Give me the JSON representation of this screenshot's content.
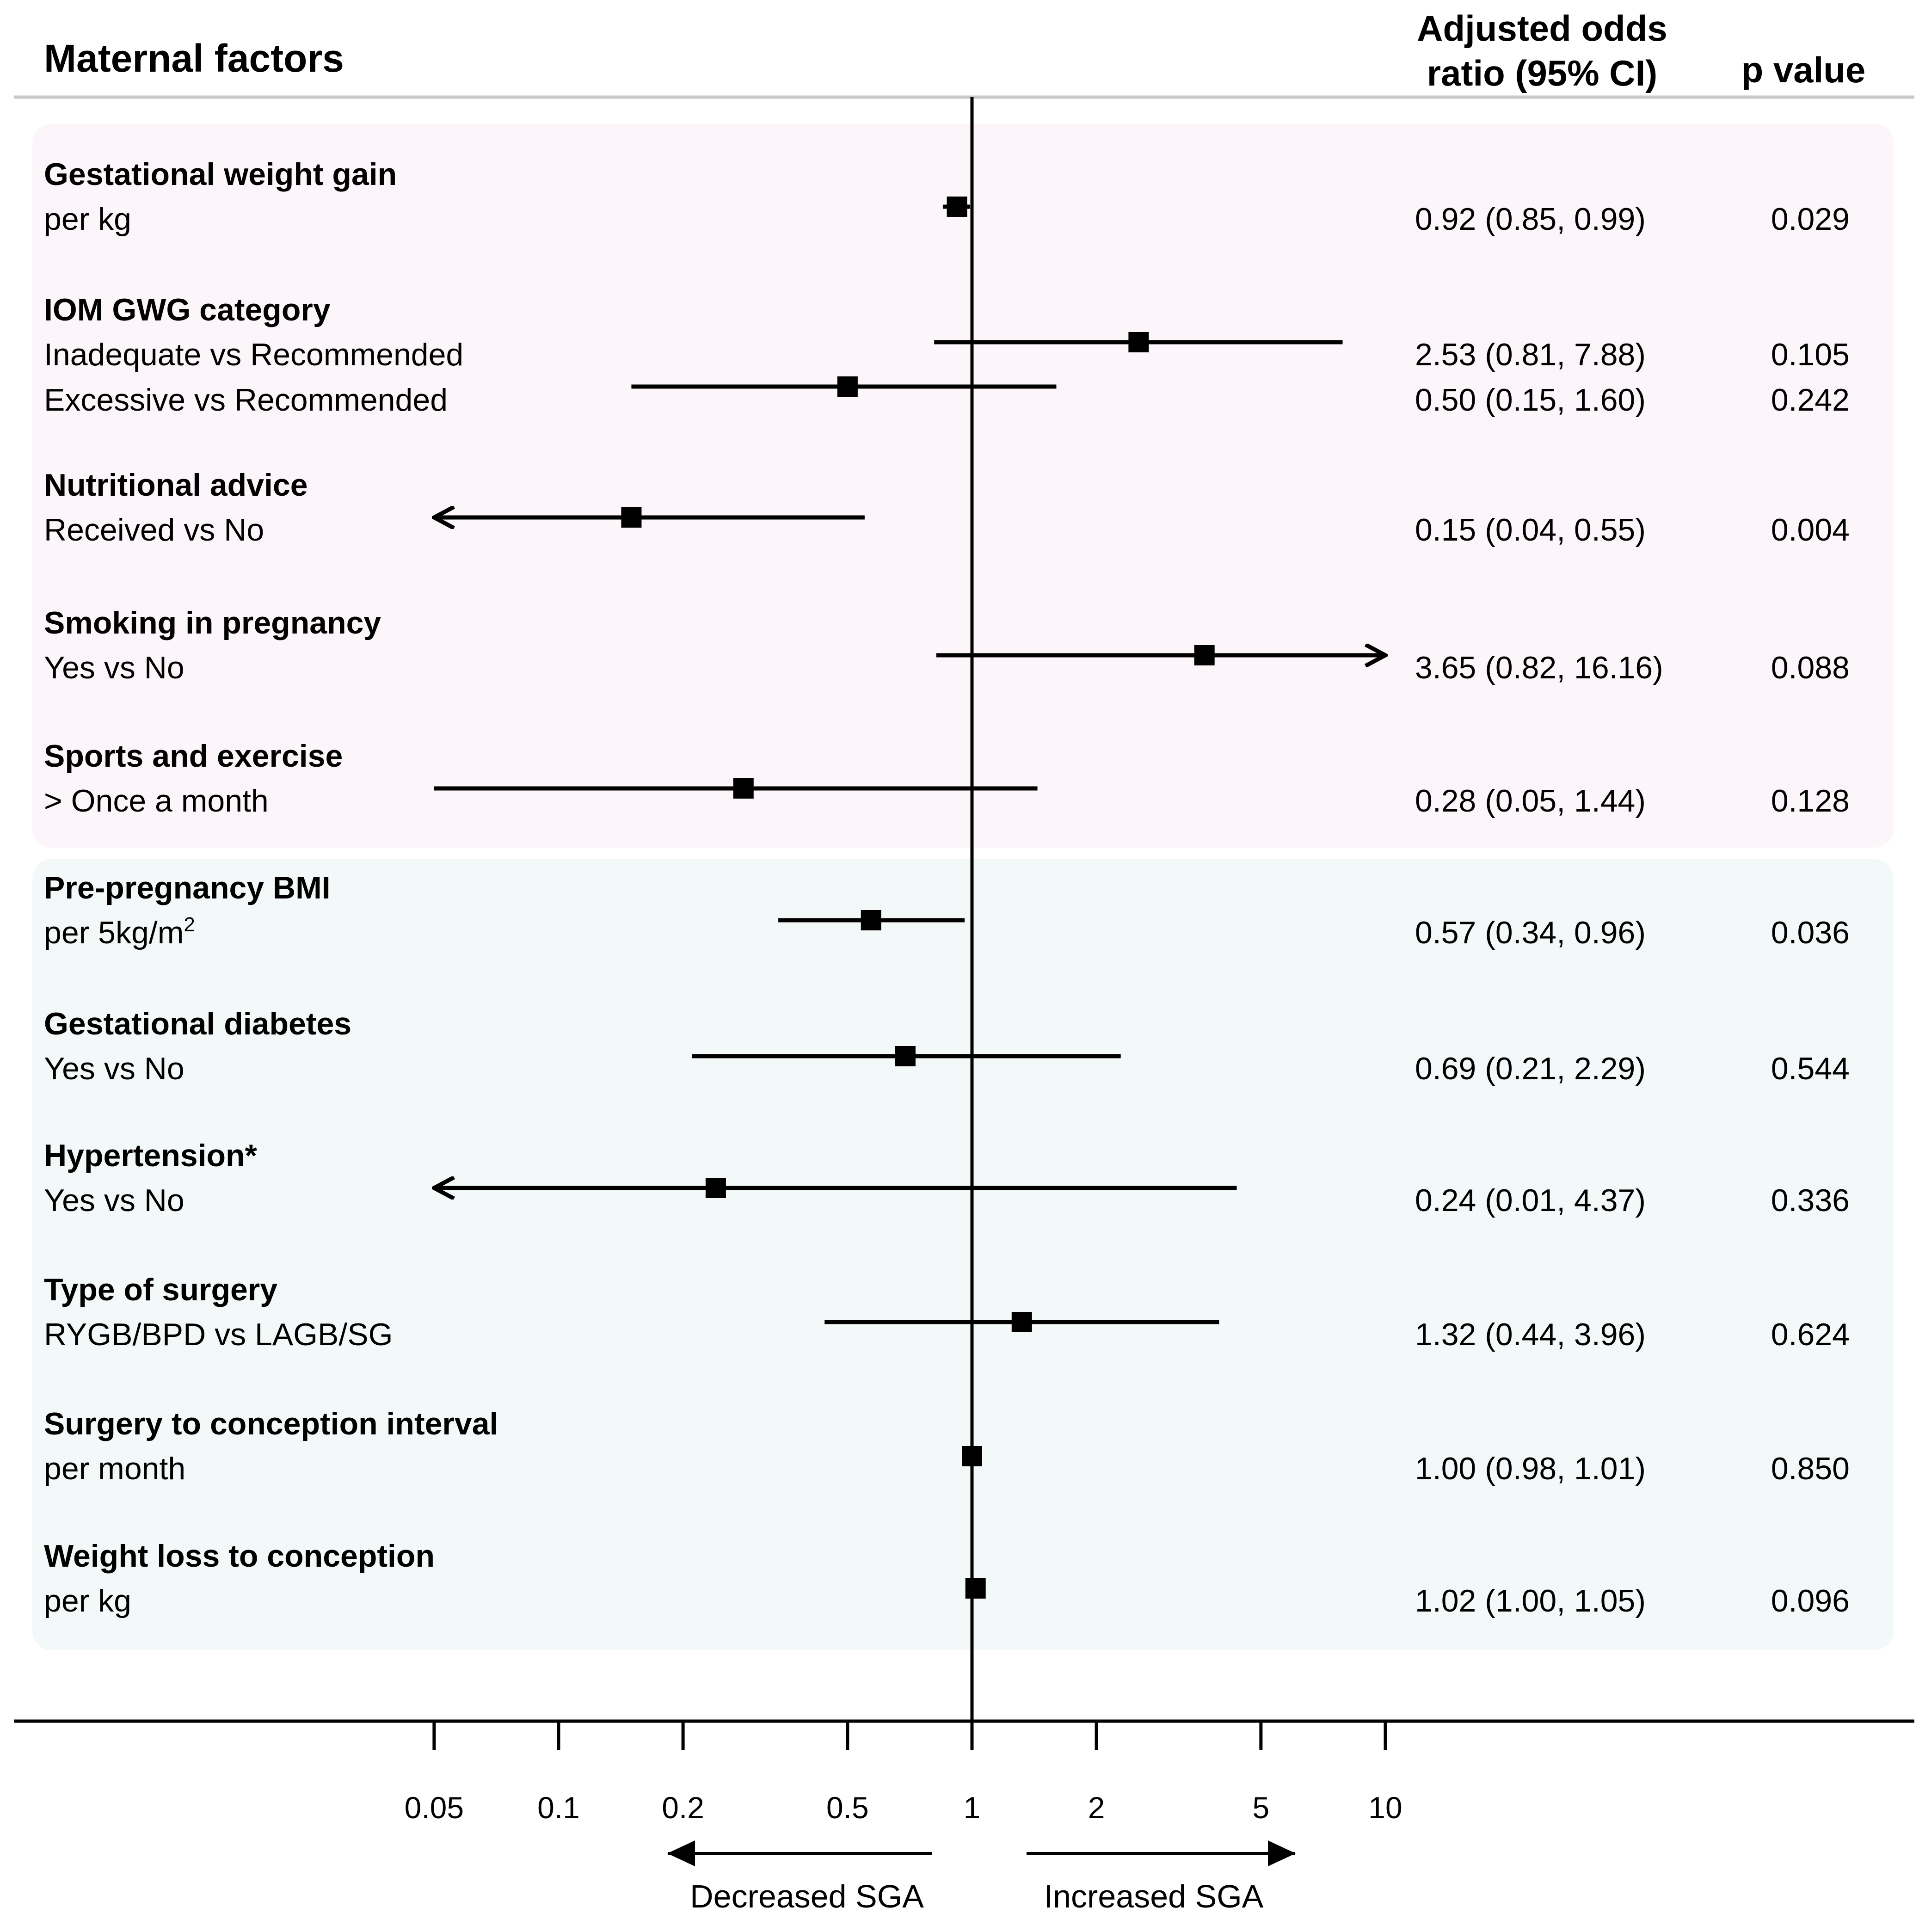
{
  "chart_data": {
    "type": "forest",
    "title": "Maternal factors",
    "columns": {
      "or_header_line1": "Adjusted odds",
      "or_header_line2": "ratio (95% CI)",
      "p_header": "p value"
    },
    "x_scale": "log",
    "xlim": [
      0.05,
      10
    ],
    "reference_value": 1,
    "ticks": [
      {
        "value": 0.05,
        "label": "0.05"
      },
      {
        "value": 0.1,
        "label": "0.1"
      },
      {
        "value": 0.2,
        "label": "0.2"
      },
      {
        "value": 0.5,
        "label": "0.5"
      },
      {
        "value": 1,
        "label": "1"
      },
      {
        "value": 2,
        "label": "2"
      },
      {
        "value": 5,
        "label": "5"
      },
      {
        "value": 10,
        "label": "10"
      }
    ],
    "direction_labels": {
      "left": "Decreased SGA",
      "right": "Increased SGA"
    },
    "panels": [
      {
        "name": "pregnancy-factors",
        "color": "#fcf6fa",
        "groups": [
          {
            "label": "Gestational weight gain",
            "rows": [
              {
                "label": "per kg",
                "or": 0.92,
                "lo": 0.85,
                "hi": 0.99,
                "ci_text": "0.92 (0.85, 0.99)",
                "p": "0.029"
              }
            ]
          },
          {
            "label": "IOM GWG category",
            "rows": [
              {
                "label": "Inadequate vs Recommended",
                "or": 2.53,
                "lo": 0.81,
                "hi": 7.88,
                "ci_text": "2.53 (0.81, 7.88)",
                "p": "0.105"
              },
              {
                "label": "Excessive vs Recommended",
                "or": 0.5,
                "lo": 0.15,
                "hi": 1.6,
                "ci_text": "0.50 (0.15, 1.60)",
                "p": "0.242"
              }
            ]
          },
          {
            "label": "Nutritional advice",
            "rows": [
              {
                "label": "Received vs No",
                "or": 0.15,
                "lo": 0.04,
                "hi": 0.55,
                "ci_text": "0.15 (0.04, 0.55)",
                "p": "0.004"
              }
            ]
          },
          {
            "label": "Smoking in pregnancy",
            "rows": [
              {
                "label": "Yes vs No",
                "or": 3.65,
                "lo": 0.82,
                "hi": 16.16,
                "ci_text": "3.65 (0.82, 16.16)",
                "p": "0.088"
              }
            ]
          },
          {
            "label": "Sports and exercise",
            "rows": [
              {
                "label": "> Once a month",
                "or": 0.28,
                "lo": 0.05,
                "hi": 1.44,
                "ci_text": "0.28 (0.05, 1.44)",
                "p": "0.128"
              }
            ]
          }
        ]
      },
      {
        "name": "pre-pregnancy-factors",
        "color": "#f3f9f9",
        "groups": [
          {
            "label": "Pre-pregnancy BMI",
            "rows": [
              {
                "label": "per 5kg/m",
                "sup": "2",
                "or": 0.57,
                "lo": 0.34,
                "hi": 0.96,
                "ci_text": "0.57 (0.34, 0.96)",
                "p": "0.036"
              }
            ]
          },
          {
            "label": "Gestational diabetes",
            "rows": [
              {
                "label": "Yes vs No",
                "or": 0.69,
                "lo": 0.21,
                "hi": 2.29,
                "ci_text": "0.69 (0.21, 2.29)",
                "p": "0.544"
              }
            ]
          },
          {
            "label": "Hypertension*",
            "rows": [
              {
                "label": "Yes vs No",
                "or": 0.24,
                "lo": 0.01,
                "hi": 4.37,
                "ci_text": "0.24 (0.01, 4.37)",
                "p": "0.336"
              }
            ]
          },
          {
            "label": "Type of surgery",
            "rows": [
              {
                "label": "RYGB/BPD vs LAGB/SG",
                "or": 1.32,
                "lo": 0.44,
                "hi": 3.96,
                "ci_text": "1.32 (0.44, 3.96)",
                "p": "0.624"
              }
            ]
          },
          {
            "label": "Surgery to conception interval",
            "rows": [
              {
                "label": "per month",
                "or": 1.0,
                "lo": 0.98,
                "hi": 1.01,
                "ci_text": "1.00 (0.98, 1.01)",
                "p": "0.850"
              }
            ]
          },
          {
            "label": "Weight loss to conception",
            "rows": [
              {
                "label": "per kg",
                "or": 1.02,
                "lo": 1.0,
                "hi": 1.05,
                "ci_text": "1.02 (1.00, 1.05)",
                "p": "0.096"
              }
            ]
          }
        ]
      }
    ]
  }
}
